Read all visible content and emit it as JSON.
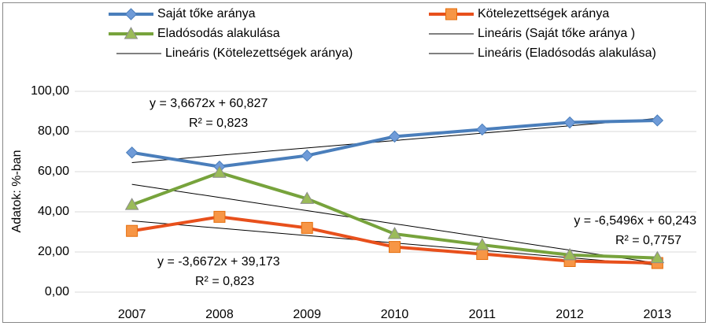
{
  "chart_data": {
    "type": "line",
    "y_axis_label": "Adatok: %-ban",
    "categories": [
      "2007",
      "2008",
      "2009",
      "2010",
      "2011",
      "2012",
      "2013"
    ],
    "series": [
      {
        "name": "Saját tőke aránya",
        "color": "#4a7ebb",
        "marker": "diamond",
        "marker_fill": "#6f9bd8",
        "values": [
          69.5,
          62.5,
          68,
          77.5,
          81,
          84.5,
          85.5
        ]
      },
      {
        "name": "Kötelezettségek aránya",
        "color": "#e8501c",
        "marker": "square",
        "marker_fill": "#f79646",
        "values": [
          30.5,
          37.5,
          32,
          22.5,
          19,
          15.5,
          14.5
        ]
      },
      {
        "name": "Eladósodás alakulása",
        "color": "#77a33c",
        "marker": "triangle",
        "marker_fill": "#9bbb59",
        "values": [
          43.5,
          59.5,
          46.5,
          29,
          23.5,
          18.5,
          17
        ]
      }
    ],
    "trendlines": [
      {
        "name": "Lineáris (Saját tőke aránya )",
        "color": "#000000",
        "equation": "y = 3,6672x + 60,827",
        "r_squared": "R² = 0,823",
        "values": [
          64.49,
          68.16,
          71.83,
          75.5,
          79.16,
          82.83,
          86.5
        ]
      },
      {
        "name": "Lineáris (Kötelezettségek aránya)",
        "color": "#000000",
        "equation": "y = -3,6672x + 39,173",
        "r_squared": "R² = 0,823",
        "values": [
          35.51,
          31.84,
          28.17,
          24.5,
          20.84,
          17.17,
          13.5
        ]
      },
      {
        "name": "Lineáris (Eladósodás alakulása)",
        "color": "#000000",
        "equation": "y = -6,5496x + 60,243",
        "r_squared": "R² = 0,7757",
        "values": [
          53.69,
          47.14,
          40.59,
          34.04,
          27.49,
          20.94,
          14.39
        ]
      }
    ],
    "ylim": [
      0,
      100
    ],
    "yticks": [
      {
        "value": 0,
        "label": "0,00"
      },
      {
        "value": 20,
        "label": "20,00"
      },
      {
        "value": 40,
        "label": "40,00"
      },
      {
        "value": 60,
        "label": "60,00"
      },
      {
        "value": 80,
        "label": "80,00"
      },
      {
        "value": 100,
        "label": "100,00"
      }
    ],
    "grid": true
  }
}
